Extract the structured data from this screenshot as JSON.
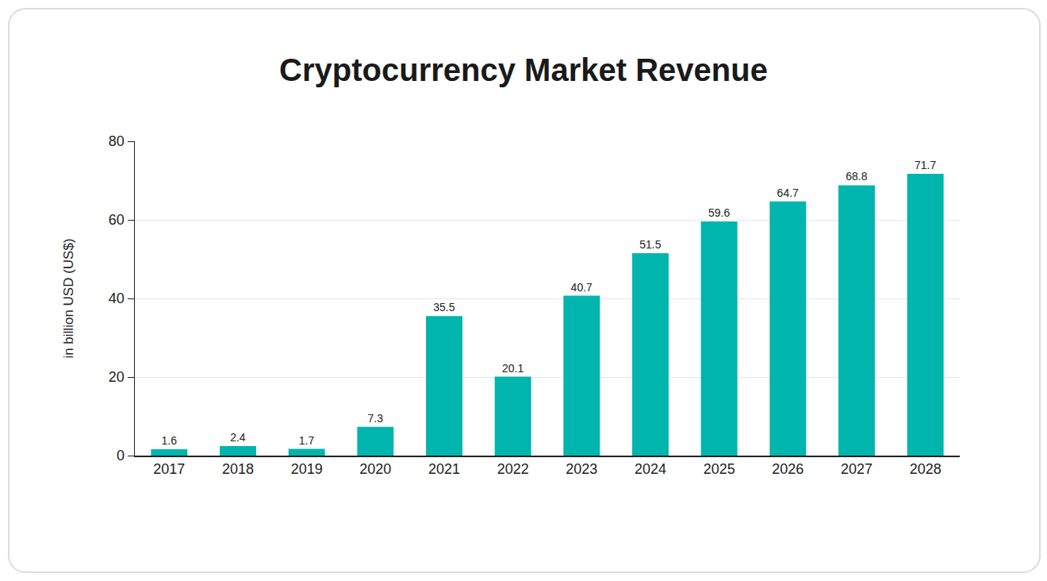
{
  "chart_data": {
    "type": "bar",
    "title": "Cryptocurrency Market Revenue",
    "y_label": "in billion USD (US$)",
    "categories": [
      "2017",
      "2018",
      "2019",
      "2020",
      "2021",
      "2022",
      "2023",
      "2024",
      "2025",
      "2026",
      "2027",
      "2028"
    ],
    "values": [
      1.6,
      2.4,
      1.7,
      7.3,
      35.5,
      20.1,
      40.7,
      51.5,
      59.6,
      64.7,
      68.8,
      71.7
    ],
    "color": "#00b5ad",
    "ylim": [
      0,
      80
    ],
    "yticks": [
      0,
      20,
      40,
      60,
      80
    ],
    "grid": true,
    "data_labels": true
  }
}
